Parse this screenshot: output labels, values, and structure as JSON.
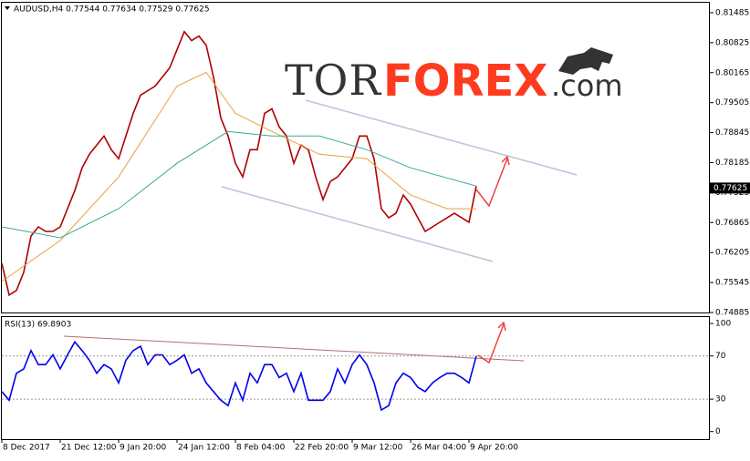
{
  "chart_data": [
    {
      "type": "line",
      "title": "AUDUSD,H4  0.77544 0.77634 0.77529 0.77625",
      "xlim": [
        0,
        194
      ],
      "ylim": [
        0.74885,
        0.81725
      ],
      "yticks": [
        0.81485,
        0.80825,
        0.80165,
        0.79505,
        0.78845,
        0.78185,
        0.77525,
        0.76865,
        0.76205,
        0.75545,
        0.74885
      ],
      "last_price": 0.77625,
      "logo": [
        "TOR",
        "FOREX",
        ".com"
      ],
      "series": [
        {
          "color": "#b00000",
          "x": [
            0,
            2,
            4,
            6,
            8,
            10,
            12,
            14,
            16,
            18,
            20,
            22,
            24,
            26,
            28,
            30,
            32,
            34,
            36,
            38,
            40,
            42,
            44,
            46,
            48,
            50,
            52,
            54,
            56,
            58,
            60,
            62,
            64,
            66,
            68,
            70,
            72,
            74,
            76,
            78,
            80,
            82,
            84,
            86,
            88,
            90,
            92,
            94,
            96,
            98,
            100,
            102,
            104,
            106,
            108,
            110,
            112,
            114,
            116,
            118,
            120,
            122,
            124,
            126,
            128,
            130
          ],
          "values": [
            0.7597,
            0.7527,
            0.7537,
            0.7577,
            0.7657,
            0.7677,
            0.7667,
            0.7667,
            0.7677,
            0.7717,
            0.7757,
            0.7807,
            0.7837,
            0.7857,
            0.7877,
            0.7847,
            0.7827,
            0.7877,
            0.7927,
            0.7967,
            0.7977,
            0.7987,
            0.8007,
            0.8027,
            0.8067,
            0.8107,
            0.8087,
            0.8097,
            0.8077,
            0.8007,
            0.7917,
            0.7877,
            0.7817,
            0.7787,
            0.7847,
            0.7847,
            0.7927,
            0.7937,
            0.7897,
            0.7877,
            0.7817,
            0.7857,
            0.7847,
            0.7787,
            0.7737,
            0.7777,
            0.7787,
            0.7807,
            0.7827,
            0.7877,
            0.7877,
            0.7827,
            0.7717,
            0.7697,
            0.7707,
            0.7747,
            0.7727,
            0.7697,
            0.7667,
            0.7677,
            0.7687,
            0.7697,
            0.7707,
            0.7697,
            0.7687,
            0.7767
          ]
        },
        {
          "color": "#e8a23a",
          "x": [
            0,
            16,
            32,
            48,
            56,
            64,
            74,
            87,
            100,
            112,
            122,
            130
          ],
          "values": [
            0.7557,
            0.7647,
            0.7787,
            0.7987,
            0.8017,
            0.7927,
            0.7887,
            0.7837,
            0.7827,
            0.7747,
            0.7717,
            0.7717
          ]
        },
        {
          "color": "#3aa89a",
          "x": [
            0,
            16,
            32,
            48,
            62,
            74,
            87,
            100,
            112,
            130
          ],
          "values": [
            0.7677,
            0.7653,
            0.7717,
            0.7817,
            0.7887,
            0.7877,
            0.7877,
            0.7847,
            0.7807,
            0.7767
          ]
        }
      ]
    },
    {
      "type": "line",
      "title": "RSI(13) 69.8903",
      "xlim": [
        0,
        194
      ],
      "ylim": [
        -7,
        106
      ],
      "yticks": [
        100,
        70,
        30,
        0
      ],
      "grid_at": [
        70,
        30
      ],
      "xticks": [
        {
          "value": 0,
          "label": "8 Dec 2017"
        },
        {
          "value": 16,
          "label": "21 Dec 12:00"
        },
        {
          "value": 32,
          "label": "9 Jan 20:00"
        },
        {
          "value": 48,
          "label": "24 Jan 12:00"
        },
        {
          "value": 64,
          "label": "8 Feb 04:00"
        },
        {
          "value": 80,
          "label": "22 Feb 20:00"
        },
        {
          "value": 96,
          "label": "9 Mar 12:00"
        },
        {
          "value": 112,
          "label": "26 Mar 04:00"
        },
        {
          "value": 128,
          "label": "9 Apr 20:00"
        }
      ],
      "series": [
        {
          "color": "#0000ee",
          "x": [
            0,
            2,
            4,
            6,
            8,
            10,
            12,
            14,
            16,
            18,
            20,
            22,
            24,
            26,
            28,
            30,
            32,
            34,
            36,
            38,
            40,
            42,
            44,
            46,
            48,
            50,
            52,
            54,
            56,
            58,
            60,
            62,
            64,
            66,
            68,
            70,
            72,
            74,
            76,
            78,
            80,
            82,
            84,
            86,
            88,
            90,
            92,
            94,
            96,
            98,
            100,
            102,
            104,
            106,
            108,
            110,
            112,
            114,
            116,
            118,
            120,
            122,
            124,
            126,
            128,
            130
          ],
          "values": [
            37,
            29,
            54,
            58,
            75,
            62,
            62,
            71,
            58,
            71,
            83,
            75,
            66,
            54,
            62,
            58,
            45,
            66,
            75,
            79,
            62,
            71,
            71,
            62,
            66,
            71,
            54,
            58,
            45,
            37,
            29,
            24,
            45,
            29,
            54,
            45,
            62,
            62,
            50,
            54,
            37,
            54,
            29,
            29,
            29,
            37,
            58,
            45,
            62,
            71,
            62,
            45,
            20,
            24,
            45,
            54,
            50,
            41,
            37,
            45,
            50,
            54,
            54,
            50,
            45,
            69.8903
          ]
        }
      ]
    }
  ]
}
